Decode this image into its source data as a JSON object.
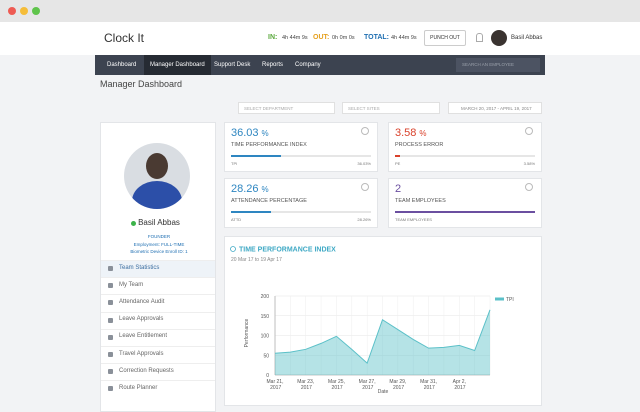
{
  "header": {
    "logo": "Clock It",
    "in_label": "IN:",
    "in_value": "4h 44m 9s",
    "out_label": "OUT:",
    "out_value": "0h 0m 0s",
    "total_label": "TOTAL:",
    "total_value": "4h 44m 9s",
    "punch_button": "PUNCH OUT",
    "user_name": "Basil Abbas"
  },
  "nav": {
    "items": [
      "Dashboard",
      "Manager Dashboard",
      "Support Desk",
      "Reports",
      "Company"
    ],
    "active": 1,
    "search_placeholder": "SEARCH AN EMPLOYEE"
  },
  "page_title": "Manager Dashboard",
  "filters": {
    "department": "SELECT DEPARTMENT",
    "sites": "SELECT SITES",
    "date_range": "MARCH 20, 2017 - APRIL 19, 2017"
  },
  "profile": {
    "name": "Basil Abbas",
    "role": "FOUNDER",
    "employment": "Employment: FULL-TIME",
    "biometric": "Biometric Device Enroll ID: 1"
  },
  "menu": {
    "items": [
      "Team Statistics",
      "My Team",
      "Attendance Audit",
      "Leave Approvals",
      "Leave Entitlement",
      "Travel Approvals",
      "Correction Requests",
      "Route Planner"
    ],
    "active": 0
  },
  "stats": [
    {
      "value": 36.03,
      "unit": "%",
      "title": "TIME PERFORMANCE INDEX",
      "short": "TPI",
      "footer_value": "36.03%",
      "color": "#2e86c1"
    },
    {
      "value": 3.58,
      "unit": "%",
      "title": "PROCESS ERROR",
      "short": "PE",
      "footer_value": "3.58%",
      "color": "#d9412b"
    },
    {
      "value": 28.26,
      "unit": "%",
      "title": "ATTENDANCE PERCENTAGE",
      "short": "ATTD",
      "footer_value": "28.26%",
      "color": "#2e86c1"
    },
    {
      "value": 2,
      "title": "TEAM EMPLOYEES",
      "short": "TEAM EMPLOYEES",
      "color": "#6b4fa0"
    }
  ],
  "chart_data": {
    "type": "area",
    "title": "TIME PERFORMANCE INDEX",
    "subtitle": "20 Mar 17 to 19 Apr 17",
    "x_label": "Date",
    "y_label": "Performance",
    "categories": [
      "Mar 21, 2017",
      null,
      "Mar 23, 2017",
      null,
      "Mar 25, 2017",
      null,
      "Mar 27, 2017",
      null,
      "Mar 29, 2017",
      null,
      "Mar 31, 2017",
      null,
      "Apr 2, 2017",
      null,
      null
    ],
    "series": [
      {
        "name": "TPI",
        "color": "#5bc0c8",
        "values": [
          55,
          58,
          65,
          80,
          98,
          65,
          30,
          140,
          115,
          90,
          68,
          70,
          75,
          62,
          165
        ]
      }
    ],
    "ylim": [
      0,
      200
    ],
    "yticks": [
      0,
      50,
      100,
      150,
      200
    ],
    "grid": true,
    "legend": "top-right"
  }
}
